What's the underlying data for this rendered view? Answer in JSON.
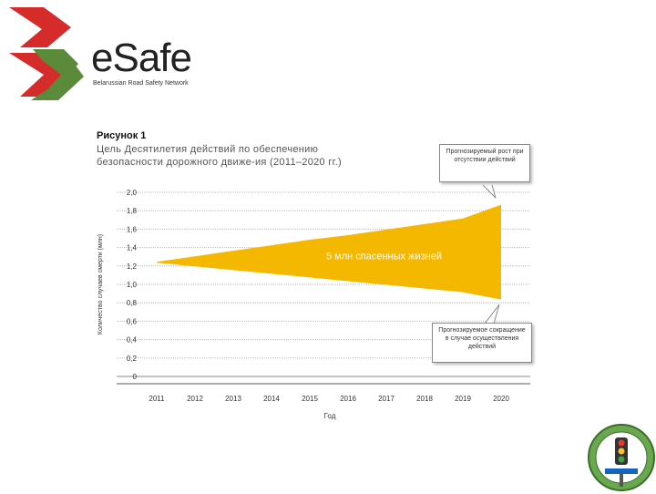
{
  "logo": {
    "name": "eSafe",
    "subtitle": "Belarussian Road Safety Network"
  },
  "figure": {
    "label": "Рисунок 1",
    "caption": "Цель Десятилетия действий по обеспечению безопасности дорожного движе-ия (2011–2020 гг.)"
  },
  "colors": {
    "band": "#f5b800",
    "brand_red": "#d62b2b",
    "brand_green": "#5a8a3a",
    "grid": "#bdbdbd"
  },
  "chart_data": {
    "type": "area",
    "title": "",
    "xlabel": "Год",
    "ylabel": "Количество случаев смерти (млн)",
    "x": [
      2011,
      2012,
      2013,
      2014,
      2015,
      2016,
      2017,
      2018,
      2019,
      2020
    ],
    "yticks": [
      "2,0",
      "1,8",
      "1,6",
      "1,4",
      "1,2",
      "1,0",
      "0,8",
      "0,6",
      "0,4",
      "0,2",
      "0"
    ],
    "ylim": [
      0,
      2.0
    ],
    "series": [
      {
        "values": [
          1.24,
          1.3,
          1.36,
          1.42,
          1.48,
          1.53,
          1.59,
          1.65,
          1.71,
          1.86
        ]
      },
      {
        "values": [
          1.24,
          1.2,
          1.16,
          1.12,
          1.08,
          1.04,
          1.0,
          0.96,
          0.92,
          0.84
        ]
      }
    ],
    "band_label": "5 млн спасенных жизней",
    "annotations": [
      "Прогнозируемый рост при отсутствии действий",
      "Прогнозируемое сокращение в случае осуществления действий"
    ],
    "grid": true
  }
}
